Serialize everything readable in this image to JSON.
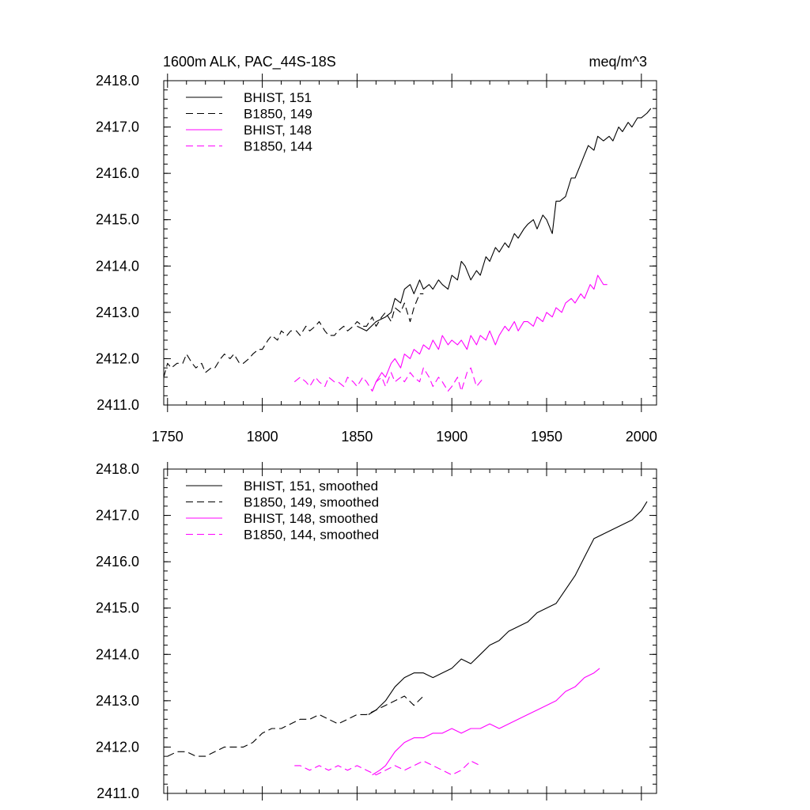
{
  "title_left": "1600m ALK, PAC_44S-18S",
  "title_right": "meq/m^3",
  "colors": {
    "black": "#000000",
    "magenta": "#ff00ff"
  },
  "chart_data": [
    {
      "type": "line",
      "title": "1600m ALK, PAC_44S-18S",
      "units": "meq/m^3",
      "xlim": [
        1748,
        2008
      ],
      "ylim": [
        2411.0,
        2418.0
      ],
      "xticks": [
        1750,
        1800,
        1850,
        1900,
        1950,
        2000
      ],
      "yticks": [
        "2411.0",
        "2412.0",
        "2413.0",
        "2414.0",
        "2415.0",
        "2416.0",
        "2417.0",
        "2418.0"
      ],
      "show_xtick_labels": true,
      "legend_position": "top-left",
      "series": [
        {
          "name": "BHIST, 151",
          "color": "#000000",
          "dash": "solid",
          "x": [
            1850,
            1855,
            1860,
            1865,
            1868,
            1870,
            1873,
            1875,
            1878,
            1880,
            1883,
            1885,
            1888,
            1890,
            1893,
            1895,
            1898,
            1900,
            1903,
            1905,
            1907,
            1910,
            1913,
            1915,
            1918,
            1920,
            1923,
            1925,
            1928,
            1930,
            1933,
            1935,
            1938,
            1940,
            1943,
            1945,
            1948,
            1950,
            1953,
            1955,
            1957,
            1960,
            1963,
            1965,
            1968,
            1970,
            1972,
            1975,
            1977,
            1980,
            1983,
            1985,
            1988,
            1990,
            1993,
            1995,
            1998,
            2000,
            2003,
            2005
          ],
          "values": [
            2412.7,
            2412.6,
            2412.8,
            2412.9,
            2413.0,
            2413.3,
            2413.2,
            2413.5,
            2413.6,
            2413.4,
            2413.7,
            2413.5,
            2413.6,
            2413.5,
            2413.7,
            2413.6,
            2413.5,
            2413.8,
            2413.7,
            2414.1,
            2414.0,
            2413.7,
            2413.9,
            2413.8,
            2414.2,
            2414.1,
            2414.4,
            2414.3,
            2414.5,
            2414.4,
            2414.7,
            2414.6,
            2414.8,
            2414.9,
            2415.0,
            2414.8,
            2415.1,
            2415.0,
            2414.7,
            2415.4,
            2415.4,
            2415.5,
            2415.9,
            2415.9,
            2416.2,
            2416.4,
            2416.6,
            2416.5,
            2416.8,
            2416.7,
            2416.8,
            2416.7,
            2417.0,
            2416.9,
            2417.1,
            2417.0,
            2417.2,
            2417.2,
            2417.3,
            2417.4
          ]
        },
        {
          "name": "B1850, 149",
          "color": "#000000",
          "dash": "dashed",
          "x": [
            1748,
            1750,
            1752,
            1755,
            1758,
            1760,
            1763,
            1765,
            1768,
            1770,
            1773,
            1775,
            1778,
            1780,
            1783,
            1785,
            1788,
            1790,
            1793,
            1795,
            1798,
            1800,
            1803,
            1805,
            1808,
            1810,
            1813,
            1815,
            1818,
            1820,
            1823,
            1825,
            1828,
            1830,
            1833,
            1835,
            1838,
            1840,
            1843,
            1845,
            1848,
            1850,
            1853,
            1855,
            1858,
            1860,
            1863,
            1865,
            1868,
            1870,
            1873,
            1875,
            1878,
            1880,
            1883,
            1885
          ],
          "values": [
            2411.6,
            2411.9,
            2411.8,
            2411.9,
            2411.9,
            2412.1,
            2411.9,
            2411.8,
            2411.9,
            2411.7,
            2411.8,
            2411.8,
            2412.0,
            2412.1,
            2412.0,
            2412.1,
            2411.9,
            2411.9,
            2412.0,
            2412.1,
            2412.2,
            2412.2,
            2412.4,
            2412.5,
            2412.4,
            2412.6,
            2412.5,
            2412.6,
            2412.6,
            2412.5,
            2412.7,
            2412.6,
            2412.7,
            2412.8,
            2412.6,
            2412.5,
            2412.5,
            2412.6,
            2412.7,
            2412.6,
            2412.7,
            2412.8,
            2412.7,
            2412.7,
            2412.9,
            2412.7,
            2412.9,
            2413.0,
            2412.8,
            2413.1,
            2413.0,
            2413.2,
            2412.8,
            2413.1,
            2413.4,
            2413.4
          ]
        },
        {
          "name": "BHIST, 148",
          "color": "#ff00ff",
          "dash": "solid",
          "x": [
            1858,
            1860,
            1863,
            1865,
            1868,
            1870,
            1873,
            1875,
            1878,
            1880,
            1883,
            1885,
            1888,
            1890,
            1893,
            1895,
            1898,
            1900,
            1903,
            1905,
            1908,
            1910,
            1913,
            1915,
            1918,
            1920,
            1923,
            1925,
            1928,
            1930,
            1933,
            1935,
            1938,
            1940,
            1943,
            1945,
            1948,
            1950,
            1953,
            1955,
            1958,
            1960,
            1963,
            1965,
            1968,
            1970,
            1973,
            1975,
            1977,
            1980,
            1982
          ],
          "values": [
            2411.3,
            2411.5,
            2411.7,
            2411.6,
            2411.9,
            2412.0,
            2411.8,
            2412.1,
            2412.0,
            2412.2,
            2412.1,
            2412.3,
            2412.2,
            2412.4,
            2412.2,
            2412.5,
            2412.3,
            2412.4,
            2412.3,
            2412.4,
            2412.2,
            2412.5,
            2412.3,
            2412.5,
            2412.4,
            2412.6,
            2412.3,
            2412.5,
            2412.7,
            2412.6,
            2412.8,
            2412.6,
            2412.8,
            2412.8,
            2412.7,
            2412.9,
            2412.8,
            2413.0,
            2412.9,
            2413.1,
            2413.0,
            2413.2,
            2413.3,
            2413.2,
            2413.4,
            2413.3,
            2413.6,
            2413.5,
            2413.8,
            2413.6,
            2413.6
          ]
        },
        {
          "name": "B1850, 144",
          "color": "#ff00ff",
          "dash": "dashed",
          "x": [
            1817,
            1820,
            1823,
            1825,
            1828,
            1830,
            1833,
            1835,
            1838,
            1840,
            1843,
            1845,
            1848,
            1850,
            1853,
            1855,
            1858,
            1860,
            1863,
            1865,
            1868,
            1870,
            1873,
            1875,
            1878,
            1880,
            1883,
            1885,
            1888,
            1890,
            1893,
            1895,
            1898,
            1900,
            1903,
            1905,
            1908,
            1910,
            1913,
            1915,
            1917
          ],
          "values": [
            2411.5,
            2411.6,
            2411.5,
            2411.4,
            2411.6,
            2411.5,
            2411.4,
            2411.6,
            2411.5,
            2411.5,
            2411.4,
            2411.6,
            2411.5,
            2411.4,
            2411.6,
            2411.5,
            2411.3,
            2411.5,
            2411.6,
            2411.4,
            2411.7,
            2411.5,
            2411.6,
            2411.5,
            2411.7,
            2411.6,
            2411.5,
            2411.8,
            2411.6,
            2411.4,
            2411.6,
            2411.5,
            2411.3,
            2411.4,
            2411.6,
            2411.3,
            2411.7,
            2411.8,
            2411.4,
            2411.5,
            2411.6
          ]
        }
      ]
    },
    {
      "type": "line",
      "xlim": [
        1748,
        2008
      ],
      "ylim": [
        2411.0,
        2418.0
      ],
      "xticks": [
        1750,
        1800,
        1850,
        1900,
        1950,
        2000
      ],
      "yticks": [
        "2411.0",
        "2412.0",
        "2413.0",
        "2414.0",
        "2415.0",
        "2416.0",
        "2417.0",
        "2418.0"
      ],
      "show_xtick_labels": false,
      "legend_position": "top-left",
      "series": [
        {
          "name": "BHIST, 151, smoothed",
          "color": "#000000",
          "dash": "solid",
          "x": [
            1856,
            1860,
            1865,
            1870,
            1875,
            1880,
            1885,
            1890,
            1895,
            1900,
            1905,
            1910,
            1915,
            1920,
            1925,
            1930,
            1935,
            1940,
            1945,
            1950,
            1955,
            1960,
            1965,
            1970,
            1975,
            1980,
            1985,
            1990,
            1995,
            2000,
            2003
          ],
          "values": [
            2412.7,
            2412.8,
            2413.0,
            2413.3,
            2413.5,
            2413.6,
            2413.6,
            2413.5,
            2413.6,
            2413.7,
            2413.9,
            2413.8,
            2414.0,
            2414.2,
            2414.3,
            2414.5,
            2414.6,
            2414.7,
            2414.9,
            2415.0,
            2415.1,
            2415.4,
            2415.7,
            2416.1,
            2416.5,
            2416.6,
            2416.7,
            2416.8,
            2416.9,
            2417.1,
            2417.3
          ]
        },
        {
          "name": "B1850, 149, smoothed",
          "color": "#000000",
          "dash": "dashed",
          "x": [
            1750,
            1755,
            1760,
            1765,
            1770,
            1775,
            1780,
            1785,
            1790,
            1795,
            1800,
            1805,
            1810,
            1815,
            1820,
            1825,
            1830,
            1835,
            1840,
            1845,
            1850,
            1855,
            1860,
            1865,
            1870,
            1875,
            1880,
            1885
          ],
          "values": [
            2411.8,
            2411.9,
            2411.9,
            2411.8,
            2411.8,
            2411.9,
            2412.0,
            2412.0,
            2412.0,
            2412.1,
            2412.3,
            2412.4,
            2412.4,
            2412.5,
            2412.6,
            2412.6,
            2412.7,
            2412.6,
            2412.5,
            2412.6,
            2412.7,
            2412.7,
            2412.8,
            2412.9,
            2413.0,
            2413.1,
            2412.9,
            2413.1
          ]
        },
        {
          "name": "BHIST, 148, smoothed",
          "color": "#ff00ff",
          "dash": "solid",
          "x": [
            1858,
            1862,
            1865,
            1870,
            1875,
            1880,
            1885,
            1890,
            1895,
            1900,
            1905,
            1910,
            1915,
            1920,
            1925,
            1930,
            1935,
            1940,
            1945,
            1950,
            1955,
            1960,
            1965,
            1970,
            1975,
            1978
          ],
          "values": [
            2411.4,
            2411.5,
            2411.6,
            2411.9,
            2412.1,
            2412.2,
            2412.2,
            2412.3,
            2412.3,
            2412.4,
            2412.3,
            2412.4,
            2412.4,
            2412.5,
            2412.4,
            2412.5,
            2412.6,
            2412.7,
            2412.8,
            2412.9,
            2413.0,
            2413.2,
            2413.3,
            2413.5,
            2413.6,
            2413.7
          ]
        },
        {
          "name": "B1850, 144, smoothed",
          "color": "#ff00ff",
          "dash": "dashed",
          "x": [
            1817,
            1820,
            1825,
            1830,
            1835,
            1840,
            1845,
            1850,
            1855,
            1860,
            1865,
            1870,
            1875,
            1880,
            1885,
            1890,
            1895,
            1900,
            1905,
            1910,
            1915
          ],
          "values": [
            2411.6,
            2411.6,
            2411.5,
            2411.6,
            2411.5,
            2411.6,
            2411.5,
            2411.6,
            2411.5,
            2411.4,
            2411.5,
            2411.6,
            2411.5,
            2411.6,
            2411.7,
            2411.6,
            2411.5,
            2411.4,
            2411.5,
            2411.7,
            2411.6
          ]
        }
      ]
    }
  ]
}
